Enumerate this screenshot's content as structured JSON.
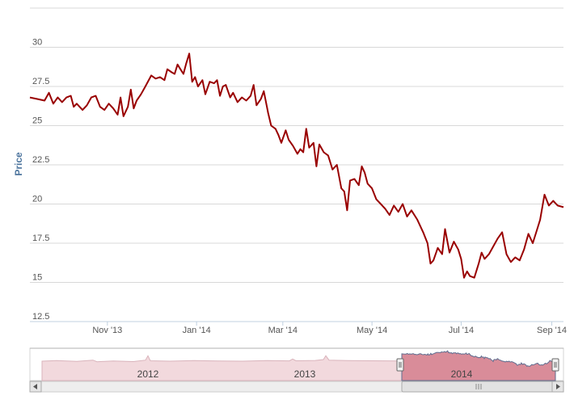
{
  "chart_data": {
    "type": "line",
    "title": "",
    "ylabel": "Price",
    "xlabel": "",
    "ylim": [
      12.5,
      32.5
    ],
    "yticks": [
      12.5,
      15,
      17.5,
      20,
      22.5,
      25,
      27.5,
      30
    ],
    "ytick_labels": [
      "12.5",
      "15",
      "17.5",
      "20",
      "22.5",
      "25",
      "27.5",
      "30"
    ],
    "xticks": [
      {
        "label": "Nov '13",
        "date": "2013-11-01"
      },
      {
        "label": "Jan '14",
        "date": "2014-01-01"
      },
      {
        "label": "Mar '14",
        "date": "2014-03-01"
      },
      {
        "label": "May '14",
        "date": "2014-05-01"
      },
      {
        "label": "Jul '14",
        "date": "2014-07-01"
      },
      {
        "label": "Sep '14",
        "date": "2014-09-01"
      }
    ],
    "x_start": "2013-09-09",
    "x_end": "2014-09-09",
    "series": [
      {
        "color": "#990000",
        "points": [
          [
            "2013-09-09",
            26.8
          ],
          [
            "2013-09-14",
            26.7
          ],
          [
            "2013-09-19",
            26.6
          ],
          [
            "2013-09-22",
            27.1
          ],
          [
            "2013-09-25",
            26.4
          ],
          [
            "2013-09-28",
            26.8
          ],
          [
            "2013-10-01",
            26.5
          ],
          [
            "2013-10-04",
            26.8
          ],
          [
            "2013-10-07",
            26.9
          ],
          [
            "2013-10-09",
            26.2
          ],
          [
            "2013-10-11",
            26.4
          ],
          [
            "2013-10-15",
            26.0
          ],
          [
            "2013-10-18",
            26.3
          ],
          [
            "2013-10-21",
            26.8
          ],
          [
            "2013-10-24",
            26.9
          ],
          [
            "2013-10-27",
            26.2
          ],
          [
            "2013-10-30",
            26.0
          ],
          [
            "2013-11-02",
            26.4
          ],
          [
            "2013-11-05",
            26.1
          ],
          [
            "2013-11-08",
            25.7
          ],
          [
            "2013-11-10",
            26.8
          ],
          [
            "2013-11-12",
            25.6
          ],
          [
            "2013-11-15",
            26.2
          ],
          [
            "2013-11-17",
            27.3
          ],
          [
            "2013-11-19",
            26.1
          ],
          [
            "2013-11-21",
            26.6
          ],
          [
            "2013-11-24",
            27.0
          ],
          [
            "2013-11-27",
            27.5
          ],
          [
            "2013-12-01",
            28.2
          ],
          [
            "2013-12-04",
            28.0
          ],
          [
            "2013-12-07",
            28.1
          ],
          [
            "2013-12-10",
            27.9
          ],
          [
            "2013-12-12",
            28.6
          ],
          [
            "2013-12-15",
            28.4
          ],
          [
            "2013-12-17",
            28.3
          ],
          [
            "2013-12-19",
            28.9
          ],
          [
            "2013-12-21",
            28.6
          ],
          [
            "2013-12-23",
            28.3
          ],
          [
            "2013-12-25",
            29.0
          ],
          [
            "2013-12-27",
            29.6
          ],
          [
            "2013-12-29",
            27.8
          ],
          [
            "2013-12-31",
            28.1
          ],
          [
            "2014-01-02",
            27.5
          ],
          [
            "2014-01-05",
            27.9
          ],
          [
            "2014-01-07",
            27.0
          ],
          [
            "2014-01-10",
            27.8
          ],
          [
            "2014-01-13",
            27.7
          ],
          [
            "2014-01-15",
            27.9
          ],
          [
            "2014-01-17",
            26.9
          ],
          [
            "2014-01-19",
            27.5
          ],
          [
            "2014-01-21",
            27.6
          ],
          [
            "2014-01-24",
            26.8
          ],
          [
            "2014-01-26",
            27.1
          ],
          [
            "2014-01-29",
            26.5
          ],
          [
            "2014-02-01",
            26.8
          ],
          [
            "2014-02-04",
            26.6
          ],
          [
            "2014-02-07",
            26.9
          ],
          [
            "2014-02-09",
            27.6
          ],
          [
            "2014-02-11",
            26.3
          ],
          [
            "2014-02-14",
            26.7
          ],
          [
            "2014-02-16",
            27.2
          ],
          [
            "2014-02-19",
            25.8
          ],
          [
            "2014-02-21",
            25.0
          ],
          [
            "2014-02-24",
            24.8
          ],
          [
            "2014-02-26",
            24.4
          ],
          [
            "2014-02-28",
            23.9
          ],
          [
            "2014-03-03",
            24.7
          ],
          [
            "2014-03-05",
            24.1
          ],
          [
            "2014-03-08",
            23.7
          ],
          [
            "2014-03-11",
            23.2
          ],
          [
            "2014-03-13",
            23.5
          ],
          [
            "2014-03-15",
            23.3
          ],
          [
            "2014-03-17",
            24.8
          ],
          [
            "2014-03-19",
            23.6
          ],
          [
            "2014-03-22",
            23.9
          ],
          [
            "2014-03-24",
            22.4
          ],
          [
            "2014-03-26",
            23.8
          ],
          [
            "2014-03-29",
            23.3
          ],
          [
            "2014-04-01",
            23.1
          ],
          [
            "2014-04-04",
            22.2
          ],
          [
            "2014-04-07",
            22.5
          ],
          [
            "2014-04-10",
            21.0
          ],
          [
            "2014-04-12",
            20.8
          ],
          [
            "2014-04-14",
            19.6
          ],
          [
            "2014-04-16",
            21.5
          ],
          [
            "2014-04-19",
            21.6
          ],
          [
            "2014-04-22",
            21.2
          ],
          [
            "2014-04-24",
            22.4
          ],
          [
            "2014-04-26",
            22.0
          ],
          [
            "2014-04-28",
            21.3
          ],
          [
            "2014-05-01",
            21.0
          ],
          [
            "2014-05-04",
            20.3
          ],
          [
            "2014-05-07",
            20.0
          ],
          [
            "2014-05-10",
            19.7
          ],
          [
            "2014-05-13",
            19.3
          ],
          [
            "2014-05-16",
            19.9
          ],
          [
            "2014-05-19",
            19.5
          ],
          [
            "2014-05-22",
            20.0
          ],
          [
            "2014-05-25",
            19.2
          ],
          [
            "2014-05-28",
            19.6
          ],
          [
            "2014-06-01",
            19.0
          ],
          [
            "2014-06-05",
            18.2
          ],
          [
            "2014-06-08",
            17.5
          ],
          [
            "2014-06-10",
            16.2
          ],
          [
            "2014-06-12",
            16.4
          ],
          [
            "2014-06-15",
            17.2
          ],
          [
            "2014-06-18",
            16.8
          ],
          [
            "2014-06-20",
            18.4
          ],
          [
            "2014-06-23",
            16.9
          ],
          [
            "2014-06-26",
            17.6
          ],
          [
            "2014-06-29",
            17.1
          ],
          [
            "2014-07-01",
            16.5
          ],
          [
            "2014-07-03",
            15.3
          ],
          [
            "2014-07-05",
            15.7
          ],
          [
            "2014-07-07",
            15.4
          ],
          [
            "2014-07-10",
            15.3
          ],
          [
            "2014-07-13",
            16.2
          ],
          [
            "2014-07-15",
            16.9
          ],
          [
            "2014-07-17",
            16.5
          ],
          [
            "2014-07-20",
            16.8
          ],
          [
            "2014-07-23",
            17.3
          ],
          [
            "2014-07-26",
            17.8
          ],
          [
            "2014-07-29",
            18.2
          ],
          [
            "2014-08-01",
            16.8
          ],
          [
            "2014-08-04",
            16.3
          ],
          [
            "2014-08-07",
            16.6
          ],
          [
            "2014-08-10",
            16.4
          ],
          [
            "2014-08-13",
            17.1
          ],
          [
            "2014-08-16",
            18.1
          ],
          [
            "2014-08-19",
            17.5
          ],
          [
            "2014-08-22",
            18.4
          ],
          [
            "2014-08-24",
            19.0
          ],
          [
            "2014-08-27",
            20.6
          ],
          [
            "2014-08-30",
            19.9
          ],
          [
            "2014-09-02",
            20.2
          ],
          [
            "2014-09-05",
            19.9
          ],
          [
            "2014-09-09",
            19.8
          ]
        ]
      }
    ]
  },
  "navigator": {
    "labels": [
      "2012",
      "2013",
      "2014"
    ],
    "scroll_left_icon": "arrow-left-icon",
    "scroll_right_icon": "arrow-right-icon"
  }
}
